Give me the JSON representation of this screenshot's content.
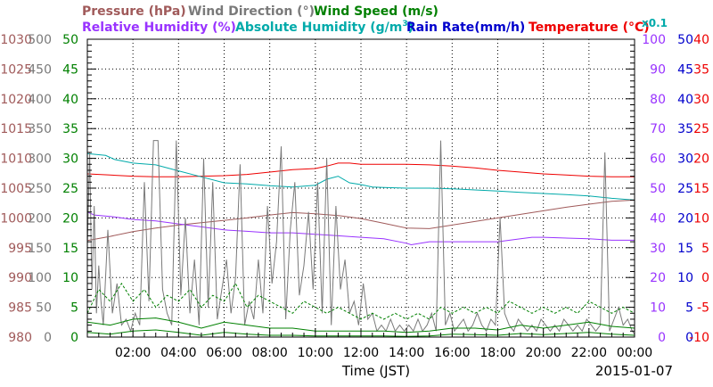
{
  "chart_data": {
    "type": "line",
    "legend": {
      "row1": [
        {
          "label": "Pressure (hPa)",
          "color": "#a05a5a"
        },
        {
          "label": "Wind Direction (°)",
          "color": "#7a7a7a"
        },
        {
          "label": "Wind Speed (m/s)",
          "color": "#008000"
        }
      ],
      "row2": [
        {
          "label": "Relative Humidity (%)",
          "color": "#9933ff"
        },
        {
          "label": "Absolute Humidity (g/m",
          "sup": "3",
          "tail": ")",
          "color": "#00aaaa"
        },
        {
          "label": "Rain Rate(mm/h)",
          "color": "#0000cc"
        },
        {
          "label": "Temperature (°C)",
          "color": "#ee0000"
        }
      ],
      "multiplier": "x0.1"
    },
    "xlabel": "Time (JST)",
    "date": "2015-01-07",
    "x_range": [
      0,
      24
    ],
    "x_ticks": [
      "02:00",
      "04:00",
      "06:00",
      "08:00",
      "10:00",
      "12:00",
      "14:00",
      "16:00",
      "18:00",
      "20:00",
      "22:00",
      "00:00"
    ],
    "axes": {
      "pressure": {
        "ticks": [
          "1030",
          "1025",
          "1020",
          "1015",
          "1010",
          "1005",
          "1000",
          "995",
          "990",
          "985",
          "980"
        ],
        "range": [
          980,
          1030
        ],
        "color": "#a05a5a"
      },
      "wind_direction": {
        "ticks": [
          "500",
          "450",
          "400",
          "350",
          "300",
          "250",
          "200",
          "150",
          "100",
          "50",
          "0"
        ],
        "range": [
          0,
          500
        ],
        "color": "#7a7a7a"
      },
      "wind_speed": {
        "ticks": [
          "50",
          "45",
          "40",
          "35",
          "30",
          "25",
          "20",
          "15",
          "10",
          "5",
          "0"
        ],
        "range": [
          0,
          50
        ],
        "color": "#008000"
      },
      "relative_humidity": {
        "ticks": [
          "100",
          "90",
          "80",
          "70",
          "60",
          "50",
          "40",
          "30",
          "20",
          "10",
          "0"
        ],
        "range": [
          0,
          100
        ],
        "color": "#9933ff"
      },
      "rain_rate": {
        "ticks": [
          "50",
          "45",
          "40",
          "35",
          "30",
          "25",
          "20",
          "15",
          "10",
          "5",
          "0"
        ],
        "range": [
          0,
          50
        ],
        "color": "#0000cc"
      },
      "temperature": {
        "ticks": [
          "40",
          "35",
          "30",
          "25",
          "20",
          "15",
          "10",
          "5",
          "0",
          "-5",
          "-10"
        ],
        "range": [
          -10,
          40
        ],
        "color": "#ee0000"
      }
    },
    "series": [
      {
        "name": "Temperature (°C)",
        "axis": "temperature",
        "color": "#ee0000",
        "x": [
          0,
          1,
          2,
          3,
          4,
          5,
          6,
          7,
          8,
          9,
          10,
          10.5,
          11,
          11.5,
          12,
          13,
          14,
          15,
          16,
          17,
          18,
          19,
          20,
          21,
          22,
          23,
          24
        ],
        "y": [
          17.4,
          17.2,
          17.0,
          16.9,
          16.9,
          17.0,
          17.1,
          17.3,
          17.7,
          18.1,
          18.3,
          18.7,
          19.2,
          19.2,
          19.0,
          19.0,
          19.0,
          18.9,
          18.7,
          18.4,
          18.0,
          17.7,
          17.4,
          17.2,
          17.0,
          16.9,
          16.9
        ]
      },
      {
        "name": "Absolute Humidity (g/m³)",
        "axis": "temperature",
        "color": "#00aaaa",
        "x": [
          0,
          0.8,
          1.2,
          2,
          3,
          4,
          5,
          6,
          7,
          8,
          9,
          10,
          10.5,
          11,
          11.5,
          12,
          12.5,
          13,
          14,
          15,
          16,
          17,
          18,
          19,
          20,
          21,
          22,
          23,
          24
        ],
        "y": [
          20.8,
          20.5,
          19.8,
          19.2,
          18.9,
          17.9,
          16.9,
          15.9,
          15.7,
          15.4,
          15.2,
          15.5,
          16.5,
          17.0,
          15.9,
          15.6,
          15.2,
          15.1,
          15.0,
          15.0,
          14.9,
          14.7,
          14.5,
          14.3,
          14.1,
          13.9,
          13.7,
          13.3,
          13.0
        ]
      },
      {
        "name": "Pressure (hPa)",
        "axis": "pressure",
        "color": "#a05a5a",
        "x": [
          0,
          1,
          2,
          3,
          4,
          5,
          6,
          7,
          8,
          9,
          10,
          11,
          12,
          13,
          14,
          15,
          16,
          17,
          18,
          19,
          20,
          21,
          22,
          23,
          24
        ],
        "y": [
          996.2,
          996.9,
          997.7,
          998.3,
          998.8,
          999.2,
          999.6,
          1000.0,
          1000.5,
          1000.9,
          1000.7,
          1000.4,
          999.9,
          999.1,
          998.3,
          998.2,
          998.8,
          999.4,
          1000.0,
          1000.6,
          1001.2,
          1001.8,
          1002.3,
          1002.8,
          1003.0
        ]
      },
      {
        "name": "Relative Humidity (%)",
        "axis": "relative_humidity",
        "color": "#9933ff",
        "x": [
          0,
          0.3,
          1,
          1.5,
          2,
          3,
          4,
          5,
          6,
          7,
          8,
          9,
          10,
          11,
          12,
          13,
          14,
          14.2,
          15,
          16,
          17,
          18,
          19,
          19.5,
          20,
          22,
          23,
          24
        ],
        "y": [
          42,
          41,
          40.5,
          40,
          39.5,
          39,
          38,
          37,
          36,
          35.5,
          35,
          35,
          34.5,
          34,
          33.5,
          33,
          31.5,
          31,
          32,
          32,
          32,
          32,
          33,
          33.5,
          33.5,
          33,
          32.5,
          32.5
        ]
      },
      {
        "name": "Wind Direction (°)",
        "axis": "wind_direction",
        "color": "#7a7a7a",
        "x": [
          0,
          0.1,
          0.2,
          0.3,
          0.4,
          0.5,
          0.6,
          0.7,
          0.9,
          1.1,
          1.3,
          1.5,
          1.7,
          1.9,
          2.1,
          2.3,
          2.5,
          2.7,
          2.9,
          3.1,
          3.3,
          3.5,
          3.7,
          3.9,
          4.1,
          4.3,
          4.5,
          4.7,
          4.9,
          5.1,
          5.3,
          5.5,
          5.7,
          5.9,
          6.1,
          6.3,
          6.5,
          6.7,
          6.9,
          7.1,
          7.3,
          7.5,
          7.7,
          7.9,
          8.1,
          8.3,
          8.5,
          8.7,
          8.9,
          9.1,
          9.3,
          9.5,
          9.7,
          9.9,
          10.1,
          10.3,
          10.5,
          10.7,
          10.9,
          11.1,
          11.3,
          11.5,
          11.7,
          11.9,
          12.1,
          12.3,
          12.5,
          12.7,
          12.9,
          13.1,
          13.3,
          13.5,
          13.7,
          13.9,
          14.1,
          14.3,
          14.5,
          14.7,
          14.9,
          15.1,
          15.3,
          15.5,
          15.7,
          15.9,
          16.1,
          16.3,
          16.5,
          16.7,
          16.9,
          17.1,
          17.3,
          17.5,
          17.7,
          17.9,
          18.1,
          18.3,
          18.5,
          18.7,
          18.9,
          19.1,
          19.3,
          19.5,
          19.7,
          19.9,
          20.1,
          20.3,
          20.5,
          20.7,
          20.9,
          21.1,
          21.3,
          21.5,
          21.7,
          21.9,
          22.1,
          22.3,
          22.5,
          22.7,
          22.9,
          23.1,
          23.3,
          23.5,
          23.7,
          23.9,
          24
        ],
        "y": [
          150,
          310,
          80,
          220,
          40,
          120,
          60,
          20,
          180,
          40,
          90,
          20,
          30,
          10,
          40,
          20,
          260,
          60,
          330,
          330,
          80,
          40,
          20,
          330,
          70,
          200,
          40,
          130,
          20,
          300,
          50,
          260,
          30,
          80,
          130,
          40,
          100,
          290,
          20,
          60,
          30,
          130,
          40,
          220,
          90,
          160,
          320,
          30,
          180,
          260,
          70,
          120,
          210,
          80,
          260,
          40,
          300,
          20,
          220,
          80,
          130,
          40,
          60,
          20,
          90,
          30,
          40,
          10,
          20,
          10,
          30,
          10,
          20,
          10,
          20,
          10,
          30,
          10,
          20,
          40,
          10,
          330,
          20,
          40,
          10,
          20,
          30,
          10,
          20,
          40,
          20,
          10,
          30,
          20,
          200,
          40,
          20,
          10,
          30,
          20,
          10,
          20,
          10,
          30,
          20,
          10,
          20,
          10,
          30,
          20,
          10,
          20,
          10,
          30,
          20,
          10,
          20,
          310,
          10,
          30,
          50,
          20,
          30,
          10,
          5
        ]
      },
      {
        "name": "Wind Speed (m/s) peak",
        "axis": "wind_speed",
        "color": "#008000",
        "dash": "3,2",
        "x": [
          0,
          0.5,
          1,
          1.5,
          2,
          2.5,
          3,
          3.5,
          4,
          4.5,
          5,
          5.5,
          6,
          6.5,
          7,
          7.5,
          8,
          8.5,
          9,
          9.5,
          10,
          10.5,
          11,
          11.5,
          12,
          12.5,
          13,
          13.5,
          14,
          14.5,
          15,
          15.5,
          16,
          16.5,
          17,
          17.5,
          18,
          18.5,
          19,
          19.5,
          20,
          20.5,
          21,
          21.5,
          22,
          22.5,
          23,
          23.5,
          24
        ],
        "y": [
          4,
          8,
          6,
          9,
          6,
          8,
          5,
          7,
          6,
          8,
          5,
          7,
          6,
          9,
          5,
          7,
          6,
          5,
          4,
          6,
          5,
          4,
          5,
          4,
          3,
          4,
          3,
          4,
          3,
          4,
          3,
          5,
          4,
          5,
          4,
          5,
          4,
          6,
          5,
          4,
          5,
          4,
          5,
          4,
          6,
          5,
          4,
          5,
          4
        ]
      },
      {
        "name": "Wind Speed (m/s) mean",
        "axis": "wind_speed",
        "color": "#008000",
        "x": [
          0,
          1,
          2,
          3,
          4,
          5,
          6,
          7,
          8,
          9,
          10,
          11,
          12,
          13,
          14,
          15,
          16,
          17,
          18,
          19,
          20,
          21,
          22,
          23,
          24
        ],
        "y": [
          2.5,
          2.0,
          3.0,
          3.2,
          2.5,
          1.5,
          2.5,
          2.0,
          1.5,
          1.5,
          1.0,
          1.0,
          1.0,
          1.0,
          0.8,
          1.0,
          1.5,
          1.5,
          1.2,
          2.0,
          1.5,
          2.0,
          2.5,
          1.8,
          1.5
        ]
      },
      {
        "name": "Wind Speed (m/s) low",
        "axis": "wind_speed",
        "color": "#008000",
        "x": [
          0,
          1,
          2,
          3,
          4,
          5,
          6,
          7,
          8,
          9,
          10,
          11,
          12,
          13,
          14,
          15,
          16,
          17,
          18,
          19,
          20,
          21,
          22,
          23,
          24
        ],
        "y": [
          0.8,
          0.5,
          1.0,
          1.2,
          0.8,
          0.3,
          0.8,
          0.5,
          0.3,
          0.3,
          0.2,
          0.2,
          0.2,
          0.2,
          0.1,
          0.2,
          0.5,
          0.4,
          0.3,
          0.6,
          0.4,
          0.6,
          0.8,
          0.5,
          0.3
        ]
      },
      {
        "name": "Rain Rate(mm/h)",
        "axis": "rain_rate",
        "color": "#0000cc",
        "x": [
          0,
          24
        ],
        "y": [
          0,
          0
        ]
      }
    ]
  }
}
